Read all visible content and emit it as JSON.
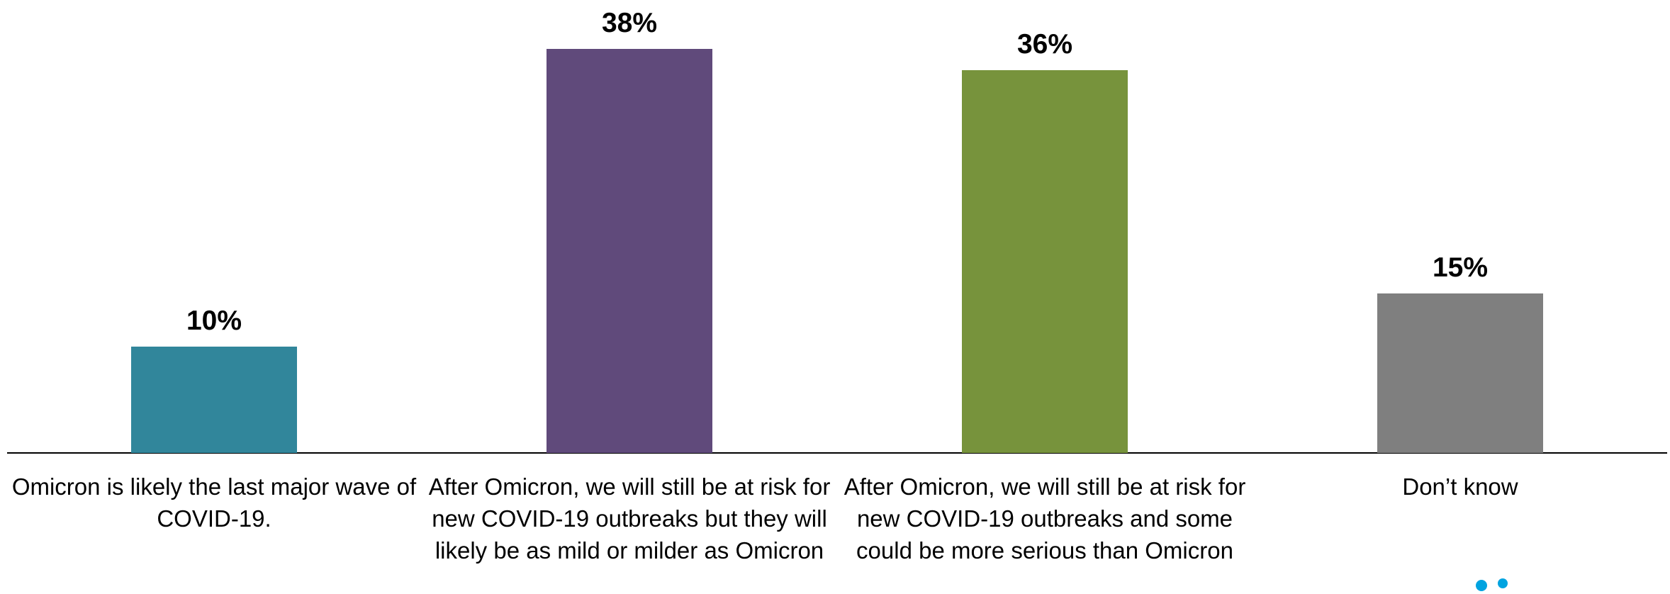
{
  "chart_data": {
    "type": "bar",
    "categories": [
      "Omicron is likely the last major wave of COVID-19.",
      "After Omicron, we will still be at risk for new COVID-19 outbreaks but they will likely be as mild or milder as Omicron",
      "After Omicron, we will still be at risk for new COVID-19 outbreaks and some could be more serious than Omicron",
      "Don’t know"
    ],
    "values": [
      10,
      38,
      36,
      15
    ],
    "value_labels": [
      "10%",
      "38%",
      "36%",
      "15%"
    ],
    "colors": [
      "#31869b",
      "#604a7b",
      "#77933c",
      "#7f7f7f"
    ]
  }
}
